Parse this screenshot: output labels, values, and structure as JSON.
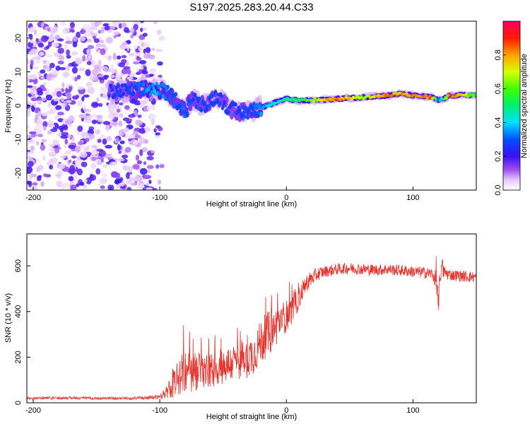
{
  "figure_title": "S197.2025.283.20.44.C33",
  "chart_data": [
    {
      "type": "heatmap",
      "xlabel": "Height of straight line (km)",
      "ylabel": "Frequency (Hz)",
      "xlim": [
        -205,
        150
      ],
      "ylim": [
        -25,
        25
      ],
      "xticks": [
        -200,
        -100,
        0,
        100
      ],
      "xtick_labels": [
        "-200",
        "-100",
        "0",
        "100"
      ],
      "yticks": [
        -20,
        -10,
        0,
        10,
        20
      ],
      "ytick_labels": [
        "-20",
        "-10",
        "0",
        "10",
        "20"
      ],
      "colorbar_label": "Normalized spectral amplitude",
      "colorbar_range": [
        0,
        1
      ],
      "colorbar_ticks": [
        0.0,
        0.2,
        0.4,
        0.6,
        0.8
      ],
      "colorbar_tick_labels": [
        "0.0",
        "0.2",
        "0.4",
        "0.6",
        "0.8"
      ],
      "noise_region": {
        "x_start": -205,
        "x_end": -95,
        "low_amplitude": 0.1
      },
      "ridge": {
        "x": [
          -140,
          -120,
          -105,
          -95,
          -85,
          -80,
          -75,
          -65,
          -55,
          -45,
          -35,
          -25,
          -15,
          -5,
          0,
          10,
          20,
          40,
          60,
          80,
          90,
          100,
          115,
          120,
          130,
          150
        ],
        "frequency_hz": [
          4,
          4.5,
          5,
          4,
          1,
          -2,
          2,
          0,
          3,
          -1,
          -2,
          -1,
          0,
          1.5,
          2,
          1.5,
          1.5,
          2,
          2.5,
          3,
          3.5,
          3,
          2.5,
          1.5,
          3,
          3.2
        ],
        "amplitude": [
          0.28,
          0.3,
          0.4,
          0.35,
          0.3,
          0.35,
          0.3,
          0.3,
          0.3,
          0.28,
          0.3,
          0.33,
          0.42,
          0.45,
          0.5,
          0.55,
          0.68,
          0.9,
          0.72,
          0.9,
          0.85,
          0.85,
          0.9,
          0.3,
          0.95,
          0.6
        ]
      }
    },
    {
      "type": "line",
      "xlabel": "Height of straight line (km)",
      "ylabel": "SNR (10 * v/v)",
      "xlim": [
        -205,
        150
      ],
      "ylim": [
        0,
        740
      ],
      "xticks": [
        -200,
        -100,
        0,
        100
      ],
      "xtick_labels": [
        "-200",
        "-100",
        "0",
        "100"
      ],
      "yticks": [
        0,
        200,
        400,
        600
      ],
      "ytick_labels": [
        "0",
        "200",
        "400",
        "600"
      ],
      "color": "#e8302a",
      "series": [
        {
          "name": "SNR",
          "x": [
            -205,
            -180,
            -150,
            -120,
            -100,
            -95,
            -90,
            -85,
            -80,
            -75,
            -70,
            -65,
            -60,
            -55,
            -50,
            -45,
            -40,
            -35,
            -30,
            -25,
            -20,
            -15,
            -10,
            -5,
            0,
            5,
            10,
            15,
            20,
            25,
            30,
            40,
            50,
            60,
            70,
            80,
            90,
            100,
            110,
            115,
            118,
            120,
            122,
            125,
            130,
            140,
            150
          ],
          "y": [
            20,
            22,
            20,
            20,
            25,
            45,
            70,
            110,
            130,
            120,
            140,
            135,
            140,
            150,
            160,
            170,
            180,
            185,
            200,
            220,
            270,
            300,
            320,
            360,
            380,
            410,
            460,
            520,
            545,
            565,
            575,
            585,
            590,
            585,
            582,
            585,
            580,
            575,
            570,
            565,
            540,
            430,
            600,
            570,
            560,
            555,
            550
          ],
          "noise_amplitude": [
            6,
            6,
            6,
            6,
            10,
            30,
            50,
            80,
            110,
            90,
            90,
            80,
            80,
            80,
            80,
            80,
            80,
            80,
            90,
            90,
            100,
            100,
            90,
            80,
            70,
            60,
            50,
            40,
            35,
            30,
            25,
            25,
            25,
            25,
            25,
            25,
            25,
            25,
            25,
            25,
            40,
            60,
            60,
            30,
            25,
            25,
            25
          ]
        }
      ]
    }
  ]
}
